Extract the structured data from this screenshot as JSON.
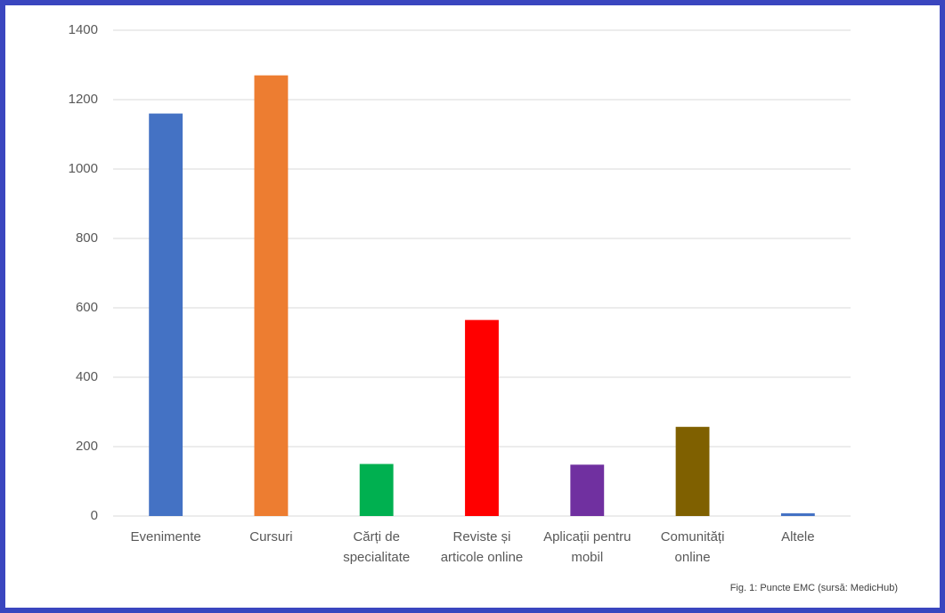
{
  "chart_data": {
    "type": "bar",
    "categories": [
      "Evenimente",
      "Cursuri",
      "Cărți de specialitate",
      "Reviste și articole online",
      "Aplicații pentru mobil",
      "Comunități online",
      "Altele"
    ],
    "values": [
      1160,
      1270,
      150,
      565,
      148,
      257,
      8
    ],
    "colors": [
      "#4472c4",
      "#ed7d31",
      "#00b050",
      "#ff0000",
      "#7030a0",
      "#7f6000",
      "#4472c4"
    ],
    "ylim": [
      0,
      1400
    ],
    "yticks": [
      0,
      200,
      400,
      600,
      800,
      1000,
      1200,
      1400
    ],
    "grid": true,
    "caption": "Fig. 1: Puncte EMC (sursă: MedicHub)"
  }
}
